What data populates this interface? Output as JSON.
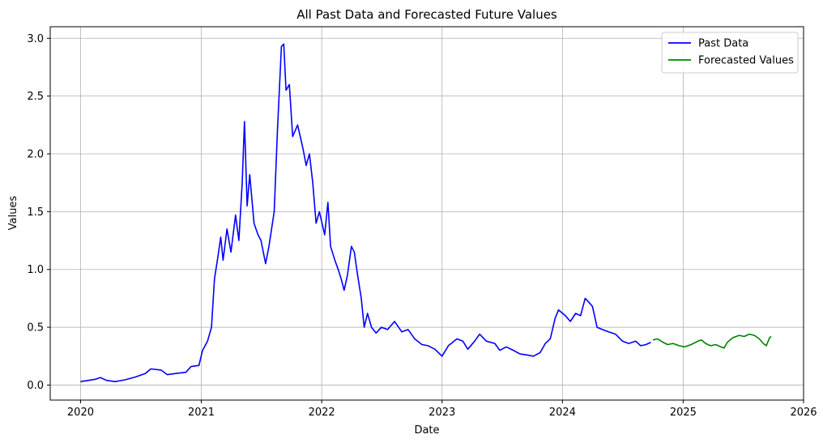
{
  "chart_data": {
    "type": "line",
    "title": "All Past Data and Forecasted Future Values",
    "xlabel": "Date",
    "ylabel": "Values",
    "xlim": [
      "2019-10-01",
      "2026-01-01"
    ],
    "ylim": [
      -0.13,
      3.1
    ],
    "x_ticks": [
      "2020-01-01",
      "2021-01-01",
      "2022-01-01",
      "2023-01-01",
      "2024-01-01",
      "2025-01-01",
      "2026-01-01"
    ],
    "x_tick_labels": [
      "2020",
      "2021",
      "2022",
      "2023",
      "2024",
      "2025",
      "2026"
    ],
    "y_ticks": [
      0.0,
      0.5,
      1.0,
      1.5,
      2.0,
      2.5,
      3.0
    ],
    "y_tick_labels": [
      "0.0",
      "0.5",
      "1.0",
      "1.5",
      "2.0",
      "2.5",
      "3.0"
    ],
    "grid": true,
    "legend_position": "top-right",
    "series": [
      {
        "name": "Past Data",
        "color": "#0000ff",
        "points": [
          [
            "2020-01-01",
            0.03
          ],
          [
            "2020-02-15",
            0.05
          ],
          [
            "2020-03-01",
            0.065
          ],
          [
            "2020-03-20",
            0.04
          ],
          [
            "2020-04-15",
            0.03
          ],
          [
            "2020-05-15",
            0.045
          ],
          [
            "2020-06-15",
            0.07
          ],
          [
            "2020-07-15",
            0.1
          ],
          [
            "2020-08-01",
            0.14
          ],
          [
            "2020-09-01",
            0.13
          ],
          [
            "2020-09-20",
            0.09
          ],
          [
            "2020-10-15",
            0.1
          ],
          [
            "2020-11-15",
            0.11
          ],
          [
            "2020-12-01",
            0.16
          ],
          [
            "2020-12-25",
            0.17
          ],
          [
            "2021-01-05",
            0.3
          ],
          [
            "2021-01-20",
            0.38
          ],
          [
            "2021-02-01",
            0.5
          ],
          [
            "2021-02-10",
            0.92
          ],
          [
            "2021-02-20",
            1.1
          ],
          [
            "2021-03-01",
            1.28
          ],
          [
            "2021-03-08",
            1.08
          ],
          [
            "2021-03-20",
            1.35
          ],
          [
            "2021-04-01",
            1.15
          ],
          [
            "2021-04-15",
            1.47
          ],
          [
            "2021-04-25",
            1.25
          ],
          [
            "2021-05-05",
            1.75
          ],
          [
            "2021-05-12",
            2.28
          ],
          [
            "2021-05-20",
            1.55
          ],
          [
            "2021-05-28",
            1.82
          ],
          [
            "2021-06-10",
            1.4
          ],
          [
            "2021-06-22",
            1.3
          ],
          [
            "2021-07-01",
            1.25
          ],
          [
            "2021-07-15",
            1.05
          ],
          [
            "2021-07-25",
            1.2
          ],
          [
            "2021-08-10",
            1.5
          ],
          [
            "2021-08-20",
            2.2
          ],
          [
            "2021-09-01",
            2.93
          ],
          [
            "2021-09-08",
            2.95
          ],
          [
            "2021-09-15",
            2.55
          ],
          [
            "2021-09-25",
            2.6
          ],
          [
            "2021-10-05",
            2.15
          ],
          [
            "2021-10-20",
            2.25
          ],
          [
            "2021-11-05",
            2.05
          ],
          [
            "2021-11-15",
            1.9
          ],
          [
            "2021-11-25",
            2.0
          ],
          [
            "2021-12-05",
            1.75
          ],
          [
            "2021-12-15",
            1.4
          ],
          [
            "2021-12-25",
            1.5
          ],
          [
            "2022-01-10",
            1.3
          ],
          [
            "2022-01-20",
            1.58
          ],
          [
            "2022-01-28",
            1.2
          ],
          [
            "2022-02-10",
            1.08
          ],
          [
            "2022-02-20",
            1.0
          ],
          [
            "2022-03-01",
            0.92
          ],
          [
            "2022-03-10",
            0.82
          ],
          [
            "2022-03-20",
            0.95
          ],
          [
            "2022-04-01",
            1.2
          ],
          [
            "2022-04-10",
            1.15
          ],
          [
            "2022-04-20",
            0.95
          ],
          [
            "2022-05-01",
            0.75
          ],
          [
            "2022-05-10",
            0.5
          ],
          [
            "2022-05-20",
            0.62
          ],
          [
            "2022-06-01",
            0.5
          ],
          [
            "2022-06-15",
            0.45
          ],
          [
            "2022-07-01",
            0.5
          ],
          [
            "2022-07-20",
            0.48
          ],
          [
            "2022-08-10",
            0.55
          ],
          [
            "2022-09-01",
            0.46
          ],
          [
            "2022-09-20",
            0.48
          ],
          [
            "2022-10-10",
            0.4
          ],
          [
            "2022-11-01",
            0.35
          ],
          [
            "2022-11-20",
            0.34
          ],
          [
            "2022-12-10",
            0.31
          ],
          [
            "2023-01-01",
            0.25
          ],
          [
            "2023-01-20",
            0.34
          ],
          [
            "2023-02-15",
            0.4
          ],
          [
            "2023-03-05",
            0.38
          ],
          [
            "2023-03-20",
            0.31
          ],
          [
            "2023-04-10",
            0.38
          ],
          [
            "2023-04-25",
            0.44
          ],
          [
            "2023-05-15",
            0.38
          ],
          [
            "2023-06-10",
            0.36
          ],
          [
            "2023-06-25",
            0.3
          ],
          [
            "2023-07-15",
            0.33
          ],
          [
            "2023-08-05",
            0.3
          ],
          [
            "2023-08-25",
            0.27
          ],
          [
            "2023-09-15",
            0.26
          ],
          [
            "2023-10-05",
            0.25
          ],
          [
            "2023-10-25",
            0.28
          ],
          [
            "2023-11-10",
            0.36
          ],
          [
            "2023-11-25",
            0.4
          ],
          [
            "2023-12-10",
            0.58
          ],
          [
            "2023-12-20",
            0.65
          ],
          [
            "2024-01-10",
            0.6
          ],
          [
            "2024-01-25",
            0.55
          ],
          [
            "2024-02-10",
            0.62
          ],
          [
            "2024-02-25",
            0.6
          ],
          [
            "2024-03-10",
            0.75
          ],
          [
            "2024-03-20",
            0.72
          ],
          [
            "2024-04-01",
            0.68
          ],
          [
            "2024-04-15",
            0.5
          ],
          [
            "2024-05-01",
            0.48
          ],
          [
            "2024-05-20",
            0.46
          ],
          [
            "2024-06-10",
            0.44
          ],
          [
            "2024-07-01",
            0.38
          ],
          [
            "2024-07-20",
            0.36
          ],
          [
            "2024-08-10",
            0.38
          ],
          [
            "2024-08-25",
            0.34
          ],
          [
            "2024-09-10",
            0.35
          ],
          [
            "2024-09-25",
            0.37
          ]
        ]
      },
      {
        "name": "Forecasted Values",
        "color": "#008000",
        "points": [
          [
            "2024-10-01",
            0.39
          ],
          [
            "2024-10-15",
            0.4
          ],
          [
            "2024-11-01",
            0.37
          ],
          [
            "2024-11-15",
            0.35
          ],
          [
            "2024-12-01",
            0.36
          ],
          [
            "2024-12-20",
            0.34
          ],
          [
            "2025-01-05",
            0.33
          ],
          [
            "2025-01-25",
            0.35
          ],
          [
            "2025-02-15",
            0.38
          ],
          [
            "2025-02-25",
            0.39
          ],
          [
            "2025-03-10",
            0.36
          ],
          [
            "2025-03-25",
            0.34
          ],
          [
            "2025-04-10",
            0.35
          ],
          [
            "2025-04-25",
            0.33
          ],
          [
            "2025-05-05",
            0.32
          ],
          [
            "2025-05-15",
            0.37
          ],
          [
            "2025-06-01",
            0.41
          ],
          [
            "2025-06-20",
            0.43
          ],
          [
            "2025-07-05",
            0.42
          ],
          [
            "2025-07-20",
            0.44
          ],
          [
            "2025-08-05",
            0.43
          ],
          [
            "2025-08-20",
            0.4
          ],
          [
            "2025-09-01",
            0.36
          ],
          [
            "2025-09-10",
            0.34
          ],
          [
            "2025-09-20",
            0.41
          ],
          [
            "2025-09-25",
            0.42
          ]
        ]
      }
    ]
  }
}
